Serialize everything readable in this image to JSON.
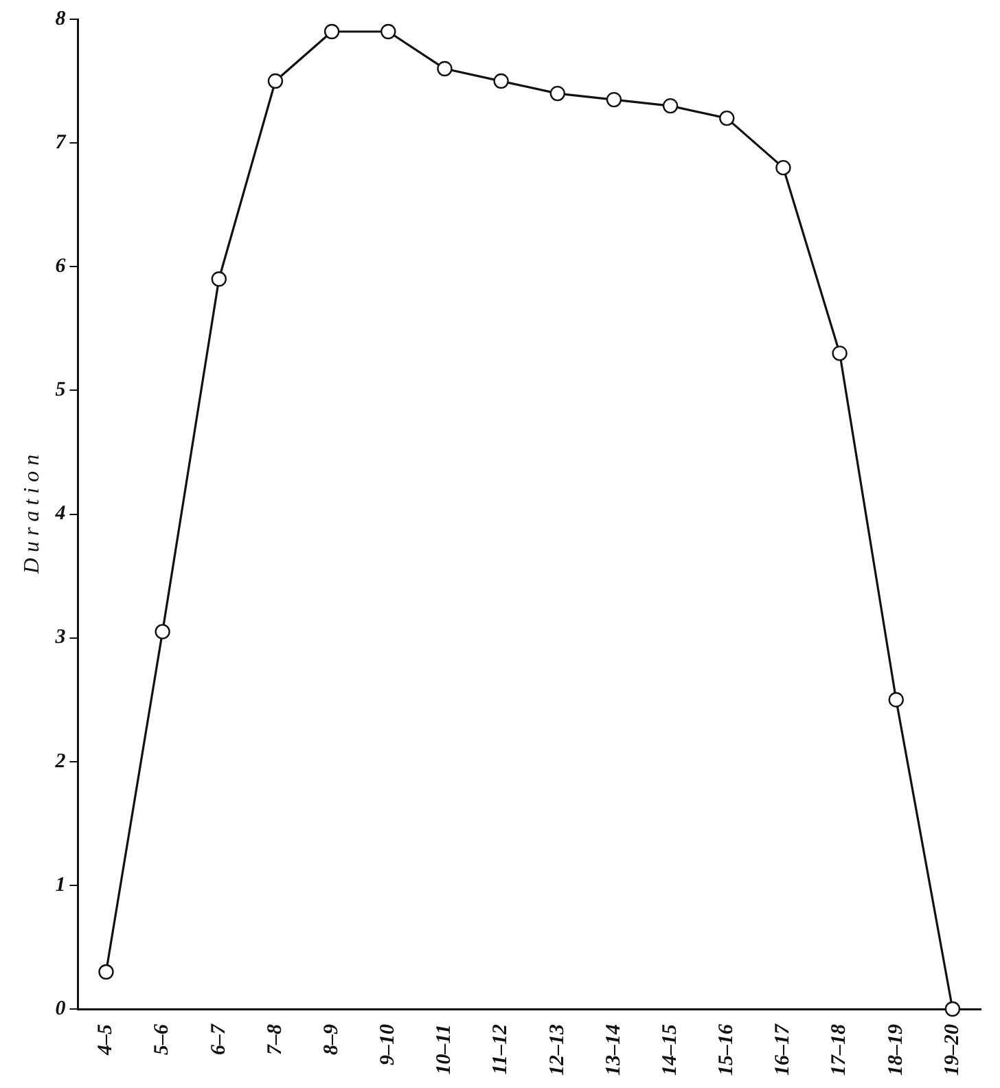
{
  "chart_data": {
    "type": "line",
    "ylabel": "D u r a t i o n",
    "categories": [
      "4–5",
      "5–6",
      "6–7",
      "7–8",
      "8–9",
      "9–10",
      "10–11",
      "11–12",
      "12–13",
      "13–14",
      "14–15",
      "15–16",
      "16–17",
      "17–18",
      "18–19",
      "19–20"
    ],
    "series": [
      {
        "color": "#111111",
        "values": [
          0.3,
          3.05,
          5.9,
          7.5,
          7.9,
          7.9,
          7.6,
          7.5,
          7.4,
          7.35,
          7.3,
          7.2,
          6.8,
          5.3,
          2.5,
          0.0
        ]
      }
    ],
    "ylim": [
      0,
      8
    ],
    "yticks": [
      0,
      1,
      2,
      3,
      4,
      5,
      6,
      7,
      8
    ],
    "grid": false,
    "legend": false,
    "marker": "circle",
    "line_style": "solid"
  }
}
